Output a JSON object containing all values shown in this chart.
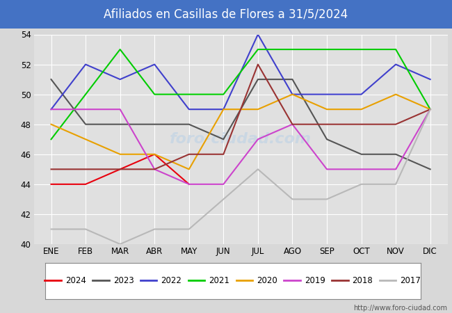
{
  "title": "Afiliados en Casillas de Flores a 31/5/2024",
  "title_bg_color": "#4472c4",
  "title_text_color": "white",
  "ylim": [
    40,
    54
  ],
  "yticks": [
    40,
    42,
    44,
    46,
    48,
    50,
    52,
    54
  ],
  "months": [
    "ENE",
    "FEB",
    "MAR",
    "ABR",
    "MAY",
    "JUN",
    "JUL",
    "AGO",
    "SEP",
    "OCT",
    "NOV",
    "DIC"
  ],
  "plot_bg_color": "#e0e0e0",
  "grid_color": "#ffffff",
  "url": "http://www.foro-ciudad.com",
  "watermark_color": "#c5d5e5",
  "series": {
    "2024": {
      "color": "#e8000d",
      "data": [
        44,
        44,
        45,
        46,
        44,
        null,
        null,
        null,
        null,
        null,
        null,
        null
      ]
    },
    "2023": {
      "color": "#555555",
      "data": [
        51,
        48,
        48,
        48,
        48,
        47,
        51,
        51,
        47,
        46,
        46,
        45
      ]
    },
    "2022": {
      "color": "#4040cc",
      "data": [
        49,
        52,
        51,
        52,
        49,
        49,
        54,
        50,
        50,
        50,
        52,
        51
      ]
    },
    "2021": {
      "color": "#00cc00",
      "data": [
        47,
        50,
        53,
        50,
        50,
        50,
        53,
        53,
        53,
        53,
        53,
        49
      ]
    },
    "2020": {
      "color": "#e8a000",
      "data": [
        48,
        47,
        46,
        46,
        45,
        49,
        49,
        50,
        49,
        49,
        50,
        49
      ]
    },
    "2019": {
      "color": "#cc44cc",
      "data": [
        49,
        49,
        49,
        45,
        44,
        44,
        47,
        48,
        45,
        45,
        45,
        49
      ]
    },
    "2018": {
      "color": "#993333",
      "data": [
        45,
        45,
        45,
        45,
        46,
        46,
        52,
        48,
        48,
        48,
        48,
        49
      ]
    },
    "2017": {
      "color": "#b8b8b8",
      "data": [
        41,
        41,
        40,
        41,
        41,
        43,
        45,
        43,
        43,
        44,
        44,
        49
      ]
    }
  },
  "series_order": [
    "2024",
    "2023",
    "2022",
    "2021",
    "2020",
    "2019",
    "2018",
    "2017"
  ]
}
